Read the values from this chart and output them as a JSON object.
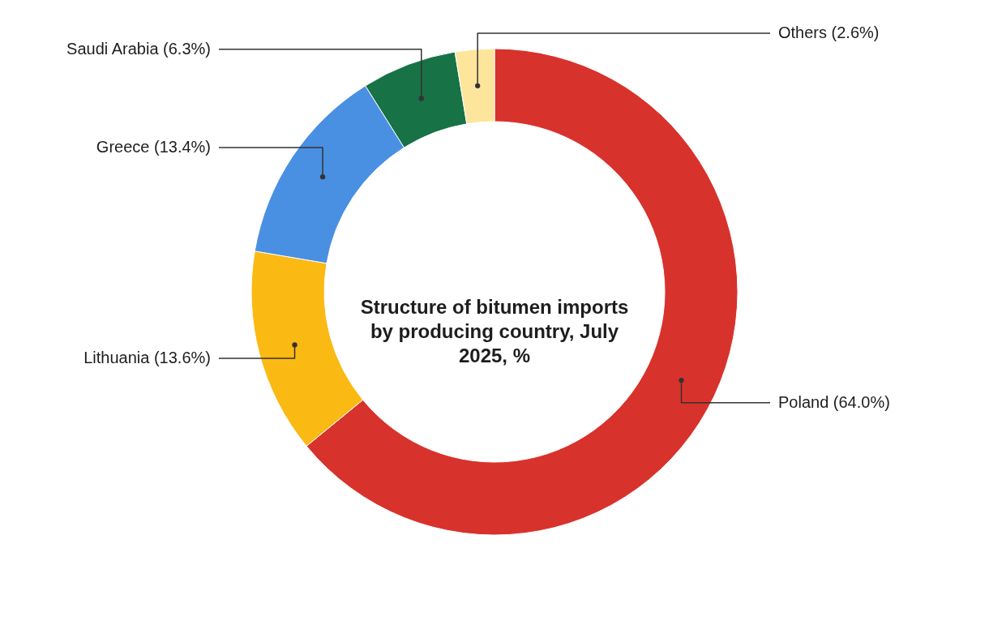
{
  "chart_data": {
    "type": "donut",
    "title": "Structure of bitumen imports by producing country, July 2025, %",
    "categories": [
      "Poland",
      "Lithuania",
      "Greece",
      "Saudi Arabia",
      "Others"
    ],
    "values": [
      64.0,
      13.6,
      13.4,
      6.3,
      2.6
    ],
    "colors": [
      "#d8322c",
      "#fbb913",
      "#4a90e2",
      "#177245",
      "#fee59c"
    ],
    "value_labels": [
      "(64.0%)",
      "(13.6%)",
      "(13.4%)",
      "(6.3%)",
      "(2.6%)"
    ]
  }
}
